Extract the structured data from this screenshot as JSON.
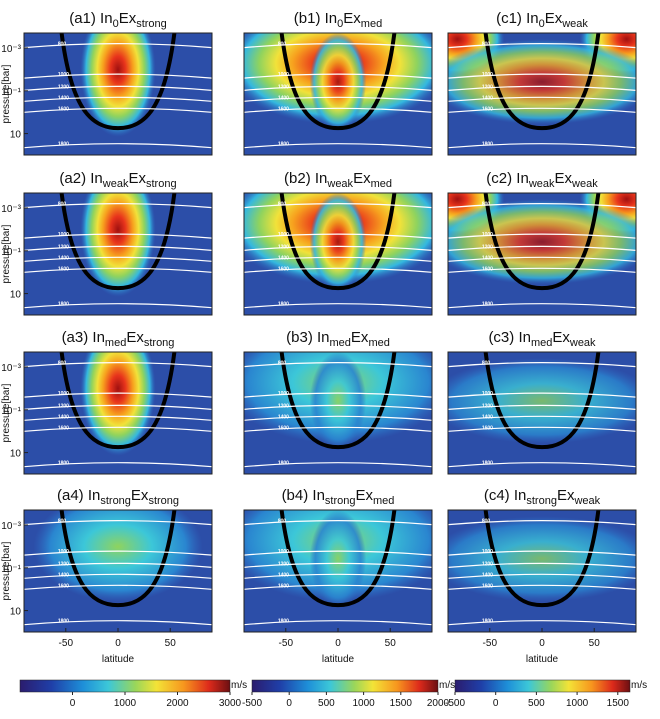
{
  "chart_data": {
    "type": "heatmap-grid",
    "panels": [
      {
        "prefix": "(a1) In",
        "in_sub": "0",
        "ex": "Ex",
        "ex_sub": "strong"
      },
      {
        "prefix": "(b1) In",
        "in_sub": "0",
        "ex": "Ex",
        "ex_sub": "med"
      },
      {
        "prefix": "(c1) In",
        "in_sub": "0",
        "ex": "Ex",
        "ex_sub": "weak"
      },
      {
        "prefix": "(a2) In",
        "in_sub": "weak",
        "ex": "Ex",
        "ex_sub": "strong"
      },
      {
        "prefix": "(b2) In",
        "in_sub": "weak",
        "ex": "Ex",
        "ex_sub": "med"
      },
      {
        "prefix": "(c2) In",
        "in_sub": "weak",
        "ex": "Ex",
        "ex_sub": "weak"
      },
      {
        "prefix": "(a3) In",
        "in_sub": "med",
        "ex": "Ex",
        "ex_sub": "strong"
      },
      {
        "prefix": "(b3) In",
        "in_sub": "med",
        "ex": "Ex",
        "ex_sub": "med"
      },
      {
        "prefix": "(c3) In",
        "in_sub": "med",
        "ex": "Ex",
        "ex_sub": "weak"
      },
      {
        "prefix": "(a4) In",
        "in_sub": "strong",
        "ex": "Ex",
        "ex_sub": "strong"
      },
      {
        "prefix": "(b4) In",
        "in_sub": "strong",
        "ex": "Ex",
        "ex_sub": "med"
      },
      {
        "prefix": "(c4) In",
        "in_sub": "strong",
        "ex": "Ex",
        "ex_sub": "weak"
      }
    ],
    "ylabel": "pressure[bar]",
    "xlabel": "latitude",
    "y_log": true,
    "y_inverted": true,
    "ylim": [
      0.0002,
      100
    ],
    "yticks": [
      {
        "value": 0.001,
        "label": "10⁻³"
      },
      {
        "value": 0.1,
        "label": "10⁻¹"
      },
      10
    ],
    "xlim": [
      -90,
      90
    ],
    "xticks": [
      -50,
      0,
      50
    ],
    "isotherm_labels": [
      800,
      1000,
      1200,
      1400,
      1600,
      1800
    ],
    "colorbars": [
      {
        "clim": [
          -1000,
          3000
        ],
        "ticks": [
          0,
          1000,
          2000,
          3000
        ],
        "unit": "m/s"
      },
      {
        "clim": [
          -500,
          2000
        ],
        "ticks": [
          -500,
          0,
          500,
          1000,
          1500,
          2000
        ],
        "unit": "m/s"
      },
      {
        "clim": [
          -500,
          1650
        ],
        "ticks": [
          -500,
          0,
          500,
          1000,
          1500
        ],
        "unit": "m/s"
      }
    ]
  }
}
